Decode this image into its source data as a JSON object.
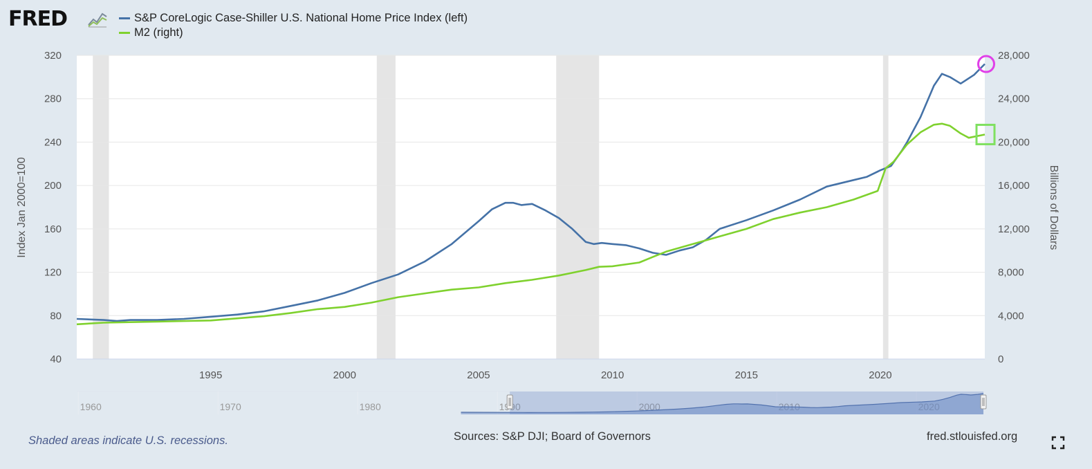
{
  "header": {
    "logo_text": "FRED",
    "logo_icon": "line-chart-icon"
  },
  "legend": [
    {
      "label": "S&P CoreLogic Case-Shiller U.S. National Home Price Index (left)",
      "color": "#4572a7"
    },
    {
      "label": "M2 (right)",
      "color": "#7fd12e"
    }
  ],
  "footer": {
    "note": "Shaded areas indicate U.S. recessions.",
    "sources": "Sources: S&P DJI; Board of Governors",
    "site": "fred.stlouisfed.org",
    "fullscreen_icon": "fullscreen-icon"
  },
  "chart_data": {
    "type": "line",
    "xlim": [
      1990.0,
      2023.9
    ],
    "x_ticks": [
      1995,
      2000,
      2005,
      2010,
      2015,
      2020
    ],
    "y_left": {
      "label": "Index Jan 2000=100",
      "lim": [
        40,
        320
      ],
      "ticks": [
        40,
        80,
        120,
        160,
        200,
        240,
        280,
        320
      ]
    },
    "y_right": {
      "label": "Billions of Dollars",
      "lim": [
        0,
        28000
      ],
      "ticks": [
        0,
        4000,
        8000,
        12000,
        16000,
        20000,
        24000,
        28000
      ]
    },
    "recessions": [
      [
        1990.6,
        1991.2
      ],
      [
        2001.2,
        2001.9
      ],
      [
        2007.9,
        2009.5
      ],
      [
        2020.1,
        2020.3
      ]
    ],
    "grid": true,
    "series": [
      {
        "name": "S&P CoreLogic Case-Shiller U.S. National Home Price Index (left)",
        "axis": "left",
        "color": "#4572a7",
        "x": [
          1990.0,
          1991.0,
          1991.5,
          1992.0,
          1993.0,
          1994.0,
          1995.0,
          1996.0,
          1997.0,
          1998.0,
          1999.0,
          2000.0,
          2001.0,
          2002.0,
          2003.0,
          2004.0,
          2005.0,
          2005.5,
          2006.0,
          2006.3,
          2006.6,
          2007.0,
          2007.5,
          2008.0,
          2008.5,
          2009.0,
          2009.3,
          2009.6,
          2010.0,
          2010.5,
          2011.0,
          2011.5,
          2012.0,
          2012.5,
          2013.0,
          2013.5,
          2014.0,
          2015.0,
          2016.0,
          2017.0,
          2018.0,
          2019.0,
          2019.5,
          2020.0,
          2020.4,
          2020.8,
          2021.0,
          2021.5,
          2022.0,
          2022.3,
          2022.6,
          2023.0,
          2023.5,
          2023.9
        ],
        "values": [
          77,
          76,
          75,
          76,
          76,
          77,
          79,
          81,
          84,
          89,
          94,
          101,
          110,
          118,
          130,
          146,
          167,
          178,
          184,
          184,
          182,
          183,
          177,
          170,
          160,
          148,
          146,
          147,
          146,
          145,
          142,
          138,
          136,
          140,
          143,
          150,
          160,
          168,
          177,
          187,
          199,
          205,
          208,
          214,
          218,
          232,
          240,
          263,
          292,
          303,
          300,
          294,
          302,
          312
        ]
      },
      {
        "name": "M2 (right)",
        "axis": "right",
        "color": "#7fd12e",
        "x": [
          1990.0,
          1991.0,
          1992.0,
          1993.0,
          1994.0,
          1995.0,
          1996.0,
          1997.0,
          1998.0,
          1999.0,
          2000.0,
          2001.0,
          2002.0,
          2003.0,
          2004.0,
          2005.0,
          2006.0,
          2007.0,
          2008.0,
          2009.0,
          2009.5,
          2010.0,
          2011.0,
          2011.5,
          2012.0,
          2013.0,
          2014.0,
          2015.0,
          2016.0,
          2017.0,
          2018.0,
          2019.0,
          2019.9,
          2020.2,
          2020.5,
          2021.0,
          2021.5,
          2022.0,
          2022.3,
          2022.6,
          2023.0,
          2023.3,
          2023.9
        ],
        "values": [
          3200,
          3350,
          3400,
          3450,
          3500,
          3550,
          3750,
          3950,
          4250,
          4600,
          4800,
          5200,
          5700,
          6050,
          6400,
          6600,
          7000,
          7300,
          7700,
          8200,
          8500,
          8550,
          8900,
          9400,
          9900,
          10600,
          11300,
          12000,
          12900,
          13500,
          14000,
          14700,
          15500,
          17600,
          18200,
          19800,
          20900,
          21600,
          21700,
          21500,
          20800,
          20400,
          20700
        ]
      }
    ],
    "annotations": [
      {
        "type": "circle",
        "series": 0,
        "x": 2023.9,
        "value": 312,
        "color": "#e040e8"
      },
      {
        "type": "square",
        "series": 1,
        "x": 2023.9,
        "value": 20700,
        "color": "#7fe060"
      }
    ],
    "navigator": {
      "x_ticks": [
        1960,
        1970,
        1980,
        1990,
        2000,
        2010,
        2020
      ],
      "range": [
        1959.0,
        2024.0
      ],
      "selected": [
        1990.0,
        2023.9
      ]
    }
  }
}
